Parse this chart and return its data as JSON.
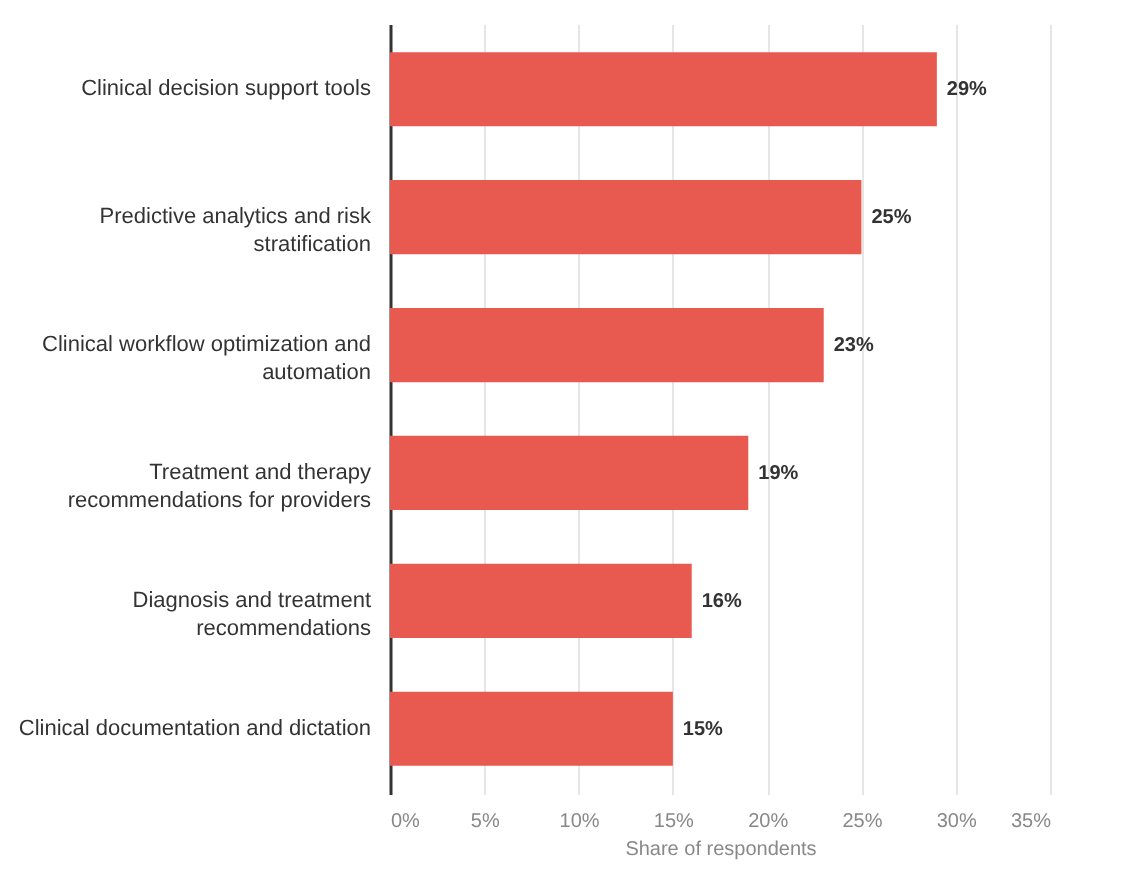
{
  "chart_data": {
    "type": "bar",
    "orientation": "horizontal",
    "xlabel": "Share of respondents",
    "categories": [
      "Clinical decision support tools",
      "Predictive analytics and risk stratification",
      "Clinical workflow optimization and automation",
      "Treatment and therapy recommendations for providers",
      "Diagnosis and treatment recommendations",
      "Clinical documentation and dictation"
    ],
    "values": [
      29,
      25,
      23,
      19,
      16,
      15
    ],
    "value_labels": [
      "29%",
      "25%",
      "23%",
      "19%",
      "16%",
      "15%"
    ],
    "color": "#e8594f",
    "xlim": [
      0,
      35
    ],
    "xticks": [
      {
        "value": 0,
        "label": "0%"
      },
      {
        "value": 5,
        "label": "5%"
      },
      {
        "value": 10,
        "label": "10%"
      },
      {
        "value": 15,
        "label": "15%"
      },
      {
        "value": 20,
        "label": "20%"
      },
      {
        "value": 25,
        "label": "25%"
      },
      {
        "value": 30,
        "label": "30%"
      },
      {
        "value": 35,
        "label": "35%"
      }
    ],
    "grid": "x"
  }
}
